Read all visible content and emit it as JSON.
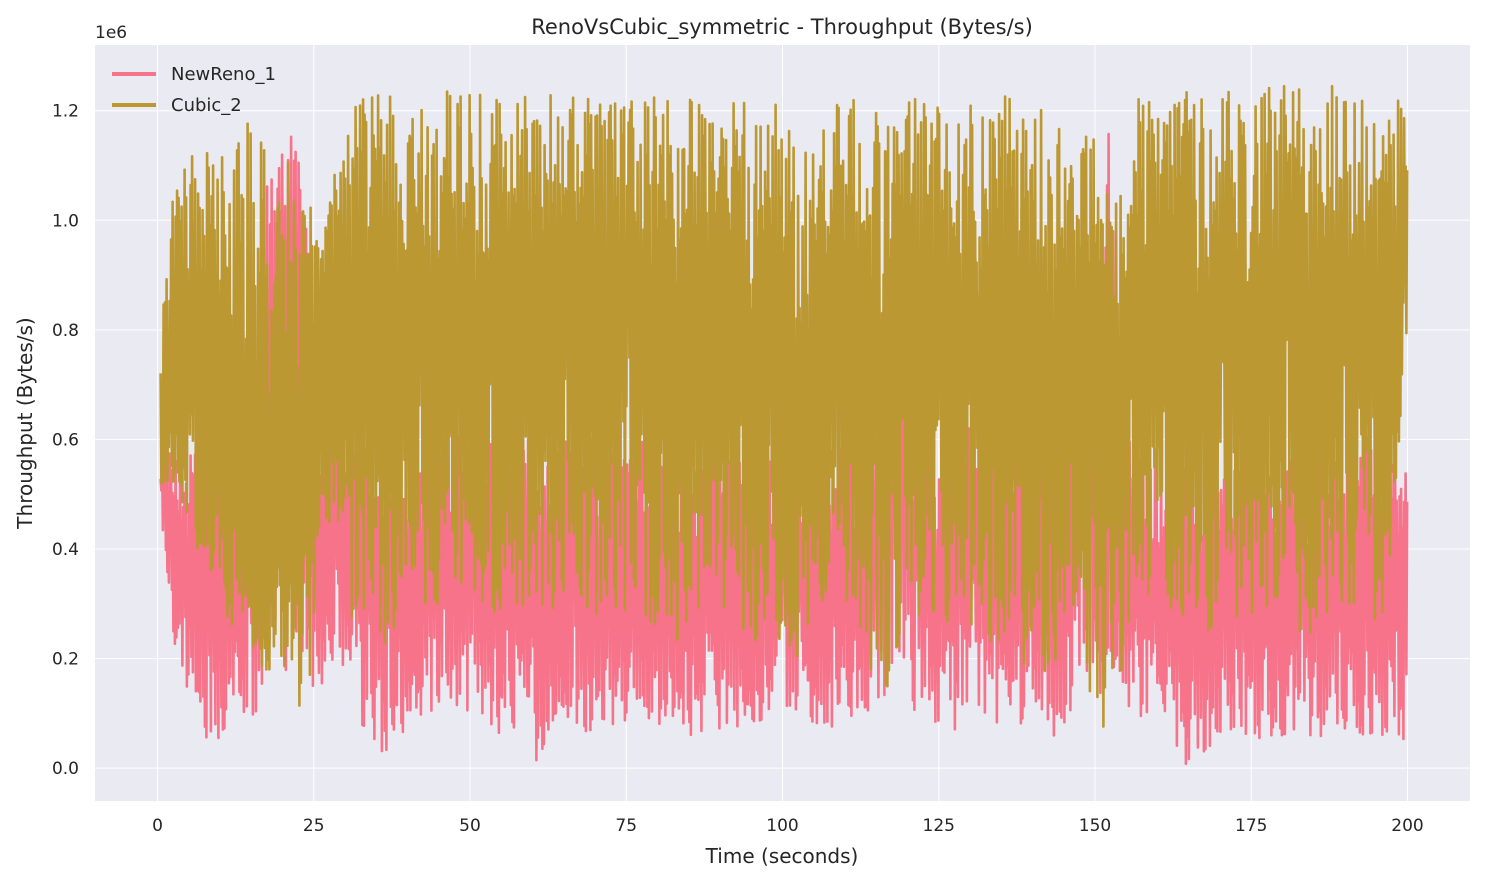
{
  "chart_data": {
    "type": "line",
    "title": "RenoVsCubic_symmetric - Throughput (Bytes/s)",
    "xlabel": "Time (seconds)",
    "ylabel": "Throughput (Bytes/s)",
    "y_offset_label": "1e6",
    "xlim": [
      -10,
      210
    ],
    "ylim": [
      -60000,
      1320000
    ],
    "xticks": [
      0,
      25,
      50,
      75,
      100,
      125,
      150,
      175,
      200
    ],
    "yticks": [
      0,
      200000,
      400000,
      600000,
      800000,
      1000000,
      1200000
    ],
    "ytick_labels": [
      "0.0",
      "0.2",
      "0.4",
      "0.6",
      "0.8",
      "1.0",
      "1.2"
    ],
    "grid": true,
    "legend_position": "top-left",
    "background_color": "#EAEAF2",
    "series": [
      {
        "name": "NewReno_1",
        "color": "#F7738A",
        "x": [
          0.5,
          3,
          6,
          9,
          12,
          15,
          17.5,
          20,
          23,
          26,
          30,
          33,
          36,
          40,
          45,
          50,
          55,
          60,
          65,
          70,
          75,
          80,
          85,
          90,
          95,
          100,
          105,
          110,
          115,
          118,
          121,
          125,
          130,
          135,
          140,
          145,
          148,
          150,
          152,
          155,
          160,
          165,
          170,
          175,
          180,
          185,
          190,
          195,
          200
        ],
        "values": [
          520000,
          380000,
          400000,
          420000,
          360000,
          330000,
          480000,
          880000,
          900000,
          420000,
          400000,
          380000,
          330000,
          320000,
          330000,
          360000,
          350000,
          340000,
          360000,
          340000,
          360000,
          350000,
          340000,
          360000,
          350000,
          380000,
          340000,
          330000,
          350000,
          900000,
          420000,
          340000,
          380000,
          360000,
          400000,
          360000,
          850000,
          380000,
          420000,
          380000,
          330000,
          340000,
          330000,
          360000,
          330000,
          330000,
          340000,
          340000,
          340000
        ],
        "min": [
          450000,
          200000,
          100000,
          0,
          100000,
          80000,
          120000,
          150000,
          100000,
          150000,
          150000,
          50000,
          0,
          80000,
          70000,
          100000,
          60000,
          0,
          80000,
          60000,
          80000,
          80000,
          60000,
          70000,
          80000,
          100000,
          80000,
          60000,
          80000,
          150000,
          100000,
          80000,
          60000,
          70000,
          80000,
          50000,
          150000,
          100000,
          150000,
          100000,
          80000,
          0,
          60000,
          50000,
          60000,
          60000,
          50000,
          60000,
          40000
        ],
        "max": [
          600000,
          560000,
          580000,
          600000,
          560000,
          580000,
          1080000,
          1220000,
          1170000,
          620000,
          620000,
          600000,
          580000,
          600000,
          600000,
          640000,
          620000,
          600000,
          620000,
          600000,
          620000,
          600000,
          600000,
          640000,
          620000,
          640000,
          600000,
          600000,
          620000,
          1130000,
          600000,
          600000,
          640000,
          620000,
          640000,
          620000,
          1110000,
          640000,
          1250000,
          620000,
          600000,
          620000,
          600000,
          620000,
          600000,
          600000,
          620000,
          600000,
          560000
        ]
      },
      {
        "name": "Cubic_2",
        "color": "#BB9832",
        "x": [
          0.5,
          2,
          4,
          6,
          8,
          10,
          12,
          14,
          16,
          18,
          20,
          22,
          24,
          26,
          28,
          31,
          34,
          37,
          40,
          44,
          48,
          52,
          56,
          60,
          64,
          68,
          72,
          76,
          80,
          84,
          88,
          92,
          96,
          100,
          104,
          108,
          112,
          116,
          120,
          124,
          128,
          132,
          136,
          140,
          144,
          147,
          150,
          153,
          156,
          160,
          164,
          168,
          172,
          176,
          180,
          184,
          188,
          192,
          196,
          200
        ],
        "values": [
          600000,
          700000,
          850000,
          780000,
          700000,
          620000,
          560000,
          500000,
          460000,
          480000,
          460000,
          470000,
          460000,
          800000,
          860000,
          780000,
          880000,
          760000,
          880000,
          820000,
          860000,
          820000,
          840000,
          820000,
          840000,
          800000,
          840000,
          820000,
          820000,
          800000,
          840000,
          820000,
          780000,
          760000,
          700000,
          860000,
          800000,
          700000,
          880000,
          820000,
          860000,
          800000,
          780000,
          740000,
          700000,
          860000,
          720000,
          600000,
          860000,
          820000,
          840000,
          820000,
          840000,
          820000,
          840000,
          800000,
          820000,
          800000,
          780000,
          900000
        ],
        "min": [
          500000,
          420000,
          480000,
          400000,
          350000,
          300000,
          250000,
          220000,
          180000,
          150000,
          150000,
          120000,
          100000,
          430000,
          360000,
          250000,
          300000,
          200000,
          350000,
          280000,
          320000,
          250000,
          300000,
          260000,
          300000,
          250000,
          300000,
          260000,
          260000,
          220000,
          300000,
          260000,
          200000,
          200000,
          150000,
          300000,
          250000,
          100000,
          300000,
          250000,
          280000,
          220000,
          200000,
          180000,
          100000,
          300000,
          50000,
          30000,
          300000,
          250000,
          280000,
          250000,
          280000,
          260000,
          280000,
          220000,
          260000,
          250000,
          200000,
          760000
        ],
        "max": [
          780000,
          1020000,
          1100000,
          1130000,
          1150000,
          1130000,
          1110000,
          1190000,
          1150000,
          1140000,
          1150000,
          1100000,
          1050000,
          950000,
          1080000,
          1200000,
          1260000,
          1240000,
          1180000,
          1230000,
          1250000,
          1230000,
          1250000,
          1220000,
          1240000,
          1220000,
          1240000,
          1220000,
          1230000,
          1220000,
          1250000,
          1220000,
          1230000,
          1210000,
          1130000,
          1220000,
          1230000,
          1200000,
          1230000,
          1220000,
          1240000,
          1220000,
          1230000,
          1220000,
          1210000,
          1100000,
          1200000,
          1050000,
          1230000,
          1220000,
          1250000,
          1230000,
          1250000,
          1230000,
          1260000,
          1230000,
          1250000,
          1220000,
          1250000,
          1210000
        ]
      }
    ]
  }
}
